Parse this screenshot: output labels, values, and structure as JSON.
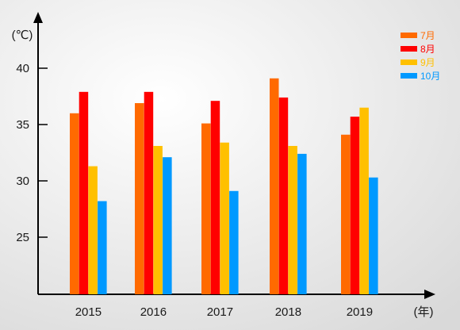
{
  "chart_data": {
    "type": "bar",
    "categories": [
      "2015",
      "2016",
      "2017",
      "2018",
      "2019"
    ],
    "series": [
      {
        "name": "7月",
        "color": "#FF6A00",
        "values": [
          36.0,
          36.9,
          35.1,
          39.1,
          34.1
        ]
      },
      {
        "name": "8月",
        "color": "#FF0000",
        "values": [
          37.9,
          37.9,
          37.1,
          37.4,
          35.7
        ]
      },
      {
        "name": "9月",
        "color": "#FFC000",
        "values": [
          31.3,
          33.1,
          33.4,
          33.1,
          36.5
        ]
      },
      {
        "name": "10月",
        "color": "#0099FF",
        "values": [
          28.2,
          32.1,
          29.1,
          32.4,
          30.3
        ]
      }
    ],
    "yticks": [
      25,
      30,
      35,
      40
    ],
    "ylim": [
      20,
      44
    ],
    "y_unit": "(℃)",
    "x_unit": "(年)",
    "legend_position": "top-right",
    "grid": false
  }
}
